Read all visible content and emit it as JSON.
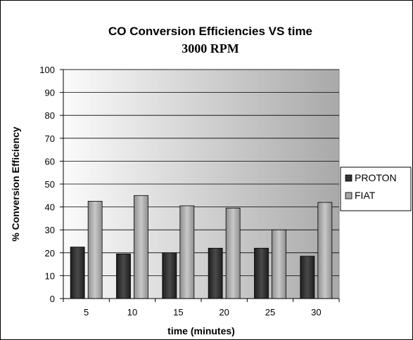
{
  "chart_data": {
    "type": "bar",
    "title": "CO Conversion Efficiencies VS time",
    "subtitle": "3000 RPM",
    "xlabel": "time (minutes)",
    "ylabel": "% Conversion Efficiency",
    "categories": [
      "5",
      "10",
      "15",
      "20",
      "25",
      "30"
    ],
    "series": [
      {
        "name": "PROTON",
        "values": [
          22.5,
          19.5,
          20,
          22,
          22,
          18.5
        ],
        "color": "#333333"
      },
      {
        "name": "FIAT",
        "values": [
          42.5,
          45,
          40.5,
          39.5,
          30,
          42
        ],
        "color": "#a6a6a6"
      }
    ],
    "ylim": [
      0,
      100
    ],
    "yticks": [
      "0",
      "10",
      "20",
      "30",
      "40",
      "50",
      "60",
      "70",
      "80",
      "90",
      "100"
    ],
    "grid": true,
    "legend_position": "right",
    "plot_background": "gradient-light-to-gray"
  }
}
